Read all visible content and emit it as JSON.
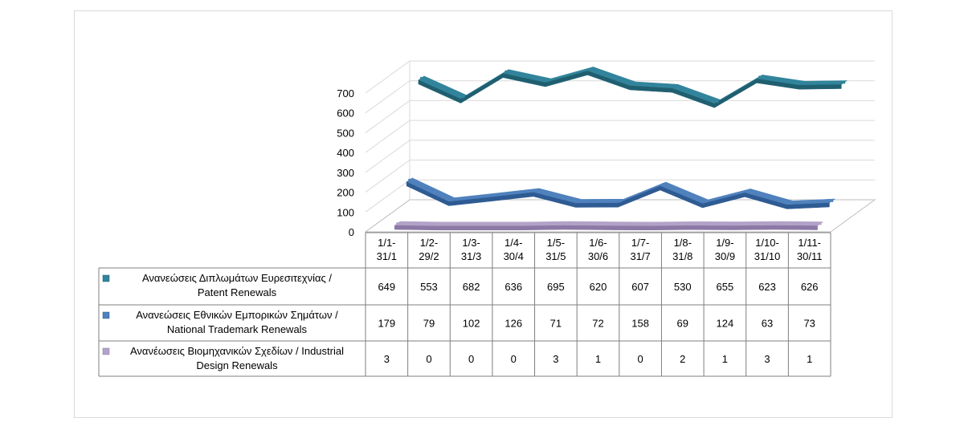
{
  "chart_data": {
    "type": "line",
    "style": "3d-line-with-data-table",
    "categories": [
      [
        "1/1-",
        "31/1"
      ],
      [
        "1/2-",
        "29/2"
      ],
      [
        "1/3-",
        "31/3"
      ],
      [
        "1/4-",
        "30/4"
      ],
      [
        "1/5-",
        "31/5"
      ],
      [
        "1/6-",
        "30/6"
      ],
      [
        "1/7-",
        "31/7"
      ],
      [
        "1/8-",
        "31/8"
      ],
      [
        "1/9-",
        "30/9"
      ],
      [
        "1/10-",
        "31/10"
      ],
      [
        "1/11-",
        "30/11"
      ]
    ],
    "yticks": [
      0,
      100,
      200,
      300,
      400,
      500,
      600,
      700
    ],
    "ylim": [
      0,
      700
    ],
    "grid": true,
    "series": [
      {
        "name_lines": [
          "Ανανεώσεις Διπλωμάτων Ευρεσιτεχνίας  /",
          "Patent Renewals"
        ],
        "color": "#31849B",
        "color_dark": "#1f5f70",
        "values": [
          649,
          553,
          682,
          636,
          695,
          620,
          607,
          530,
          655,
          623,
          626
        ]
      },
      {
        "name_lines": [
          "Ανανεώσεις Εθνικών Εμπορικών Σημάτων /",
          "National Trademark Renewals"
        ],
        "color": "#4F81BD",
        "color_dark": "#2e5b93",
        "values": [
          179,
          79,
          102,
          126,
          71,
          72,
          158,
          69,
          124,
          63,
          73
        ]
      },
      {
        "name_lines": [
          "Ανανέωσεις Βιομηχανικών Σχεδίων / Industrial",
          "Design Renewals"
        ],
        "color": "#B3A2C7",
        "color_dark": "#8c79a6",
        "values": [
          3,
          0,
          0,
          0,
          3,
          1,
          0,
          2,
          1,
          3,
          1
        ]
      }
    ]
  }
}
